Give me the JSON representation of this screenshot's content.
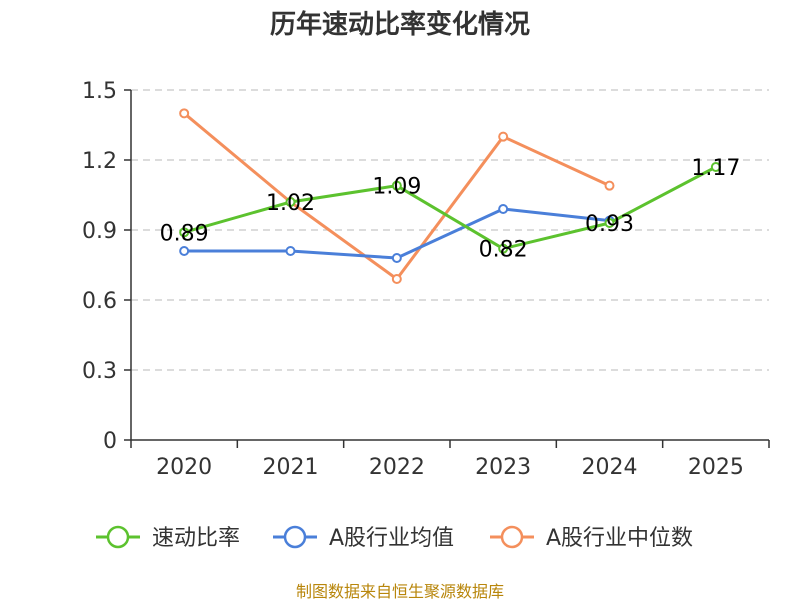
{
  "chart_data": {
    "type": "line",
    "title": "历年速动比率变化情况",
    "categories": [
      "2020",
      "2021",
      "2022",
      "2023",
      "2024",
      "2025"
    ],
    "yticks": [
      "0",
      "0.3",
      "0.6",
      "0.9",
      "1.2",
      "1.5"
    ],
    "ylim": [
      0,
      1.5
    ],
    "grid": true,
    "legend_position": "bottom",
    "series": [
      {
        "name": "速动比率",
        "color": "#5cc22e",
        "values": [
          0.89,
          1.02,
          1.09,
          0.82,
          0.93,
          1.17
        ],
        "labels": [
          "0.89",
          "1.02",
          "1.09",
          "0.82",
          "0.93",
          "1.17"
        ]
      },
      {
        "name": "A股行业均值",
        "color": "#4a7fd9",
        "values": [
          0.81,
          0.81,
          0.78,
          0.99,
          0.94,
          null
        ]
      },
      {
        "name": "A股行业中位数",
        "color": "#f48f5c",
        "values": [
          1.4,
          1.02,
          0.69,
          1.3,
          1.09,
          null
        ]
      }
    ],
    "source": "制图数据来自恒生聚源数据库"
  }
}
